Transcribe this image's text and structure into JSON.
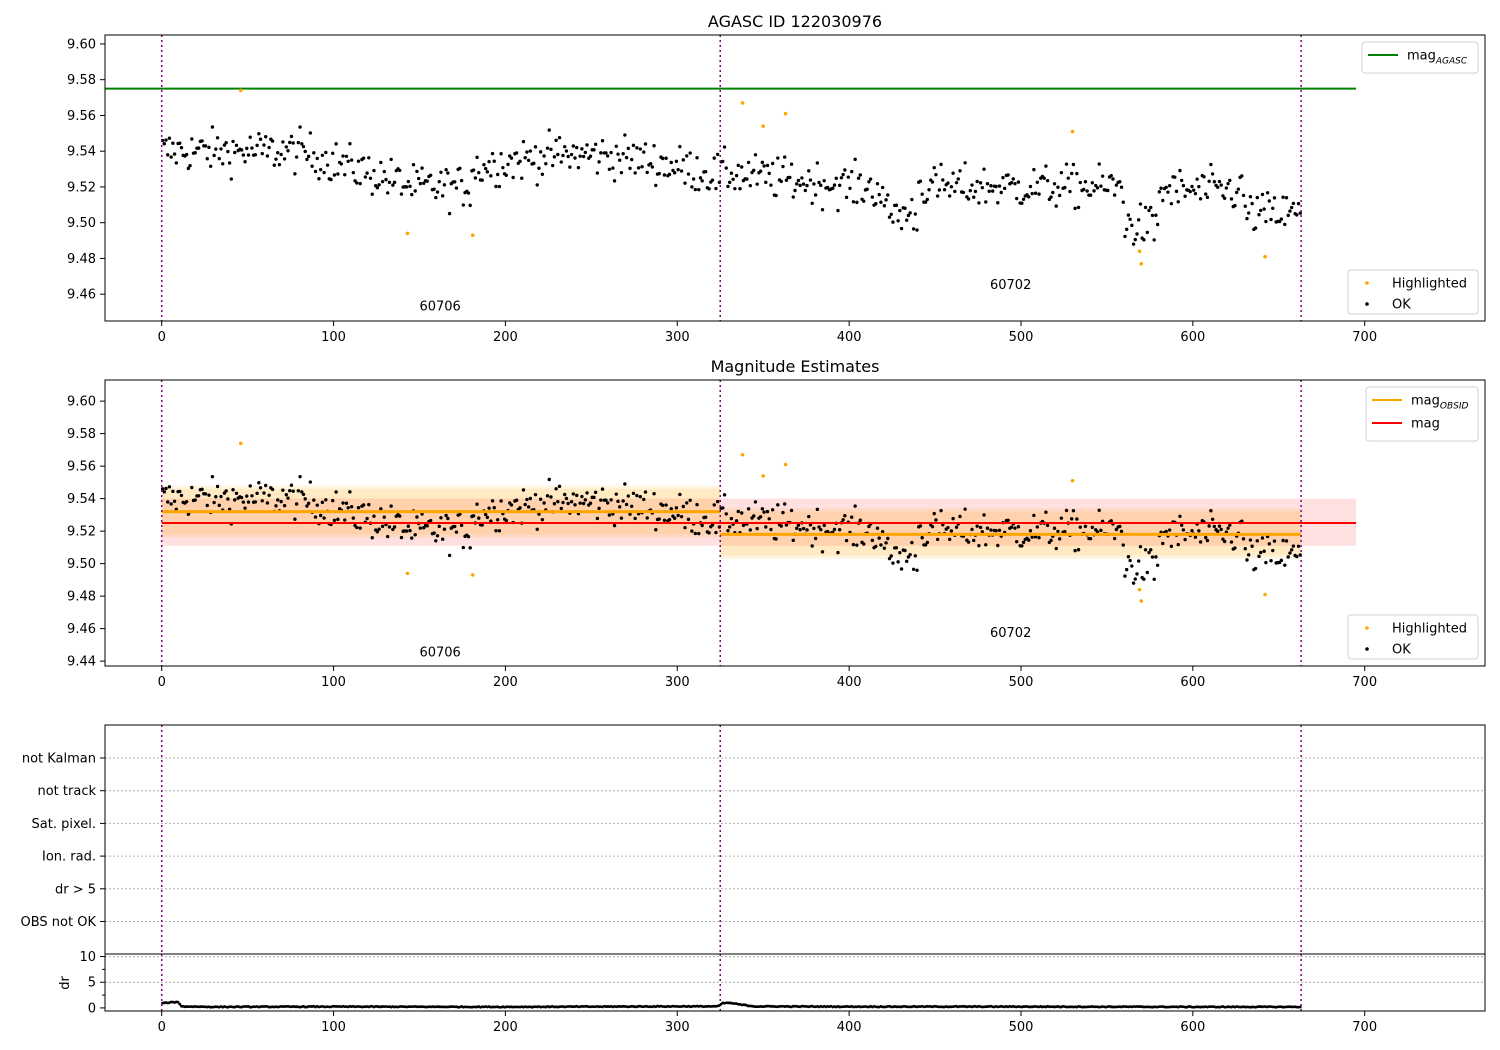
{
  "chart_data": [
    {
      "type": "scatter",
      "title": "AGASC ID 122030976",
      "xlim": [
        -33,
        770
      ],
      "ylim": [
        9.445,
        9.605
      ],
      "xticks": [
        0,
        100,
        200,
        300,
        400,
        500,
        600,
        700
      ],
      "yticks": [
        9.46,
        9.48,
        9.5,
        9.52,
        9.54,
        9.56,
        9.58,
        9.6
      ],
      "ytick_labels": [
        "9.46",
        "9.48",
        "9.50",
        "9.52",
        "9.54",
        "9.56",
        "9.58",
        "9.60"
      ],
      "obs_boundaries": [
        0,
        325,
        663
      ],
      "annotations": [
        {
          "text": "60706",
          "x": 162,
          "y": 9.451
        },
        {
          "text": "60702",
          "x": 494,
          "y": 9.463
        }
      ],
      "hlines": [
        {
          "name": "mag_AGASC",
          "value": 9.575,
          "x0": -33,
          "x1": 695,
          "color": "#008000"
        }
      ],
      "highlighted_points": [
        [
          46,
          9.574
        ],
        [
          143,
          9.494
        ],
        [
          181,
          9.493
        ],
        [
          338,
          9.567
        ],
        [
          350,
          9.554
        ],
        [
          363,
          9.561
        ],
        [
          530,
          9.551
        ],
        [
          569,
          9.484
        ],
        [
          570,
          9.477
        ],
        [
          642,
          9.481
        ]
      ],
      "legend_lines": [
        {
          "label": "mag",
          "sub": "AGASC",
          "color": "#008000"
        }
      ],
      "legend_points": [
        {
          "label": "Highlighted",
          "color": "#ffa500"
        },
        {
          "label": "OK",
          "color": "#000000"
        }
      ]
    },
    {
      "type": "scatter",
      "title": "Magnitude Estimates",
      "xlim": [
        -33,
        770
      ],
      "ylim": [
        9.437,
        9.613
      ],
      "xticks": [
        0,
        100,
        200,
        300,
        400,
        500,
        600,
        700
      ],
      "yticks": [
        9.44,
        9.46,
        9.48,
        9.5,
        9.52,
        9.54,
        9.56,
        9.58,
        9.6
      ],
      "ytick_labels": [
        "9.44",
        "9.46",
        "9.48",
        "9.50",
        "9.52",
        "9.54",
        "9.56",
        "9.58",
        "9.60"
      ],
      "obs_boundaries": [
        0,
        325,
        663
      ],
      "annotations": [
        {
          "text": "60706",
          "x": 162,
          "y": 9.443
        },
        {
          "text": "60702",
          "x": 494,
          "y": 9.455
        }
      ],
      "mag": {
        "value": 9.525,
        "band": [
          9.511,
          9.54
        ],
        "x0": 0,
        "x1": 695,
        "color": "#ff0000"
      },
      "mag_obsid": [
        {
          "obsid": "60706",
          "value": 9.532,
          "band_inner": [
            9.518,
            9.546
          ],
          "band_outer": [
            9.516,
            9.548
          ],
          "x0": 0,
          "x1": 325
        },
        {
          "obsid": "60702",
          "value": 9.518,
          "band_inner": [
            9.505,
            9.532
          ],
          "band_outer": [
            9.503,
            9.534
          ],
          "x0": 325,
          "x1": 663
        }
      ],
      "highlighted_points": [
        [
          46,
          9.574
        ],
        [
          143,
          9.494
        ],
        [
          181,
          9.493
        ],
        [
          338,
          9.567
        ],
        [
          350,
          9.554
        ],
        [
          363,
          9.561
        ],
        [
          530,
          9.551
        ],
        [
          569,
          9.484
        ],
        [
          570,
          9.477
        ],
        [
          642,
          9.481
        ]
      ],
      "legend_lines": [
        {
          "label": "mag",
          "sub": "OBSID",
          "color": "#ffa500"
        },
        {
          "label": "mag",
          "sub": "",
          "color": "#ff0000"
        }
      ],
      "legend_points": [
        {
          "label": "Highlighted",
          "color": "#ffa500"
        },
        {
          "label": "OK",
          "color": "#000000"
        }
      ]
    },
    {
      "type": "scatter",
      "title": "",
      "xlim": [
        -33,
        770
      ],
      "categories": [
        "OBS not OK",
        "dr > 5",
        "Ion. rad.",
        "Sat. pixel.",
        "not track",
        "not Kalman"
      ],
      "obs_boundaries": [
        0,
        325,
        663
      ],
      "flagged_points": []
    },
    {
      "type": "line",
      "title": "",
      "ylabel": "dr",
      "xlim": [
        -33,
        770
      ],
      "ylim": [
        -0.6,
        10.5
      ],
      "xticks": [
        0,
        100,
        200,
        300,
        400,
        500,
        600,
        700
      ],
      "yticks": [
        0,
        5,
        10
      ],
      "ytick_labels": [
        "0",
        "5",
        "10"
      ],
      "obs_boundaries": [
        0,
        325,
        663
      ],
      "dr_profile": [
        [
          0,
          0.9
        ],
        [
          3,
          1.0
        ],
        [
          6,
          1.1
        ],
        [
          9,
          1.15
        ],
        [
          10,
          1.2
        ],
        [
          11,
          0.3
        ],
        [
          30,
          0.2
        ],
        [
          100,
          0.25
        ],
        [
          200,
          0.2
        ],
        [
          300,
          0.3
        ],
        [
          324,
          0.3
        ],
        [
          326,
          0.9
        ],
        [
          330,
          1.0
        ],
        [
          338,
          0.6
        ],
        [
          345,
          0.3
        ],
        [
          400,
          0.25
        ],
        [
          500,
          0.25
        ],
        [
          600,
          0.2
        ],
        [
          663,
          0.2
        ]
      ]
    }
  ],
  "colors": {
    "ok": "#000000",
    "highlighted": "#ffa500",
    "boundary": "#800080",
    "mag_agasc": "#008000",
    "mag": "#ff0000",
    "mag_obsid": "#ffa500"
  }
}
